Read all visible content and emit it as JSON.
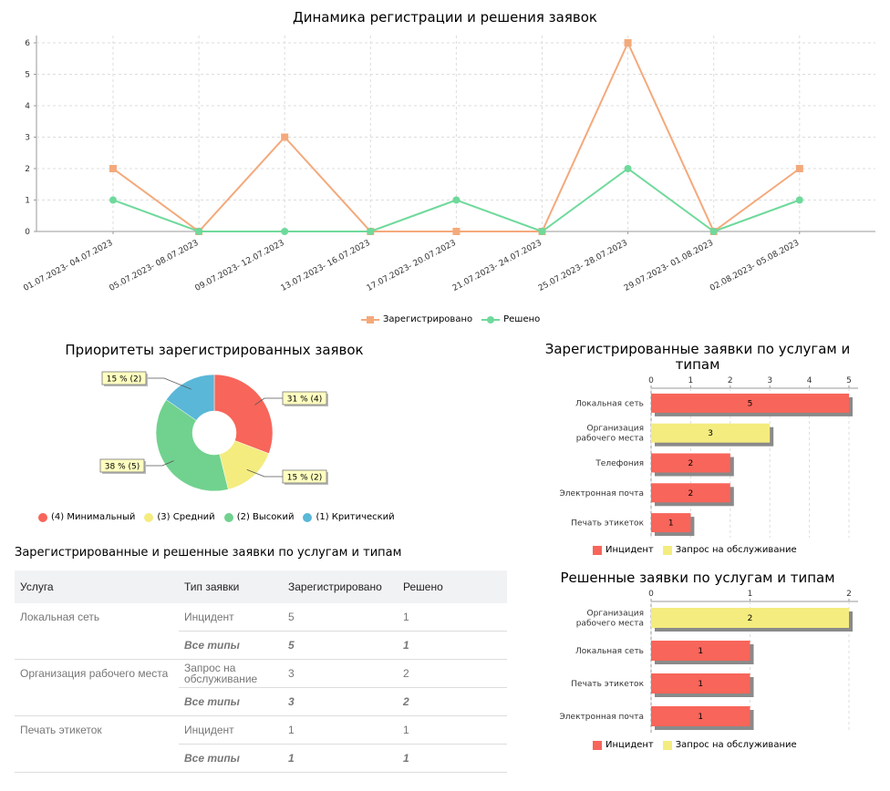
{
  "line_chart": {
    "title": "Динамика регистрации и решения заявок",
    "legend": [
      "Зарегистрировано",
      "Решено"
    ]
  },
  "pie_chart": {
    "title": "Приоритеты зарегистрированных заявок",
    "callouts": [
      "31 % (4)",
      "15 % (2)",
      "38 % (5)",
      "15 % (2)"
    ],
    "legend": [
      "(4) Минимальный",
      "(3) Средний",
      "(2) Высокий",
      "(1) Критический"
    ]
  },
  "bar_chart_1": {
    "title_line1": "Зарегистрированные заявки по услугам и",
    "title_line2": "типам",
    "legend": [
      "Инцидент",
      "Запрос на обслуживание"
    ]
  },
  "bar_chart_2": {
    "title": "Решенные заявки по услугам и типам",
    "legend": [
      "Инцидент",
      "Запрос на обслуживание"
    ]
  },
  "table": {
    "title": "Зарегистрированные и решенные заявки по услугам и типам",
    "headers": [
      "Услуга",
      "Тип заявки",
      "Зарегистрировано",
      "Решено"
    ],
    "rows": [
      [
        "Локальная сеть",
        "Инцидент",
        "5",
        "1"
      ],
      [
        "",
        "Все типы",
        "5",
        "1"
      ],
      [
        "Организация рабочего места",
        "Запрос на обслуживание",
        "3",
        "2"
      ],
      [
        "",
        "Все типы",
        "3",
        "2"
      ],
      [
        "Печать этикеток",
        "Инцидент",
        "1",
        "1"
      ],
      [
        "",
        "Все типы",
        "1",
        "1"
      ]
    ]
  },
  "colors": {
    "registered": "#f4a97b",
    "solved": "#6fd99b",
    "incident": "#f8655a",
    "request": "#f4ec7f",
    "minimal": "#f8655a",
    "medium": "#f4ec7f",
    "high": "#70d28e",
    "critical": "#5ab7d8"
  },
  "chart_data": [
    {
      "type": "line",
      "title": "Динамика регистрации и решения заявок",
      "categories": [
        "01.07.2023- 04.07.2023",
        "05.07.2023- 08.07.2023",
        "09.07.2023- 12.07.2023",
        "13.07.2023- 16.07.2023",
        "17.07.2023- 20.07.2023",
        "21.07.2023- 24.07.2023",
        "25.07.2023- 28.07.2023",
        "29.07.2023- 01.08.2023",
        "02.08.2023- 05.08.2023"
      ],
      "series": [
        {
          "name": "Зарегистрировано",
          "values": [
            2,
            0,
            3,
            0,
            0,
            0,
            6,
            0,
            2
          ]
        },
        {
          "name": "Решено",
          "values": [
            1,
            0,
            0,
            0,
            1,
            0,
            2,
            0,
            1
          ]
        }
      ],
      "ylim": [
        0,
        6
      ],
      "yticks": [
        0,
        1,
        2,
        3,
        4,
        5,
        6
      ],
      "grid": true,
      "legend_position": "bottom"
    },
    {
      "type": "pie",
      "title": "Приоритеты зарегистрированных заявок",
      "labels": [
        "(4) Минимальный",
        "(3) Средний",
        "(2) Высокий",
        "(1) Критический"
      ],
      "values": [
        4,
        2,
        5,
        2
      ],
      "percent_labels": [
        "31 % (4)",
        "15 % (2)",
        "38 % (5)",
        "15 % (2)"
      ],
      "legend_position": "bottom"
    },
    {
      "type": "bar",
      "orientation": "horizontal",
      "title": "Зарегистрированные заявки по услугам и типам",
      "categories": [
        "Локальная сеть",
        "Организация рабочего места",
        "Телефония",
        "Электронная почта",
        "Печать этикеток"
      ],
      "values": [
        5,
        3,
        2,
        2,
        1
      ],
      "types": [
        "Инцидент",
        "Запрос на обслуживание",
        "Инцидент",
        "Инцидент",
        "Инцидент"
      ],
      "xlim": [
        0,
        5
      ],
      "xticks": [
        0,
        1,
        2,
        3,
        4,
        5
      ],
      "legend": [
        "Инцидент",
        "Запрос на обслуживание"
      ],
      "legend_position": "bottom"
    },
    {
      "type": "bar",
      "orientation": "horizontal",
      "title": "Решенные заявки по услугам и типам",
      "categories": [
        "Организация рабочего места",
        "Локальная сеть",
        "Печать этикеток",
        "Электронная почта"
      ],
      "values": [
        2,
        1,
        1,
        1
      ],
      "types": [
        "Запрос на обслуживание",
        "Инцидент",
        "Инцидент",
        "Инцидент"
      ],
      "xlim": [
        0,
        2
      ],
      "xticks": [
        0,
        1,
        2
      ],
      "legend": [
        "Инцидент",
        "Запрос на обслуживание"
      ],
      "legend_position": "bottom"
    }
  ]
}
